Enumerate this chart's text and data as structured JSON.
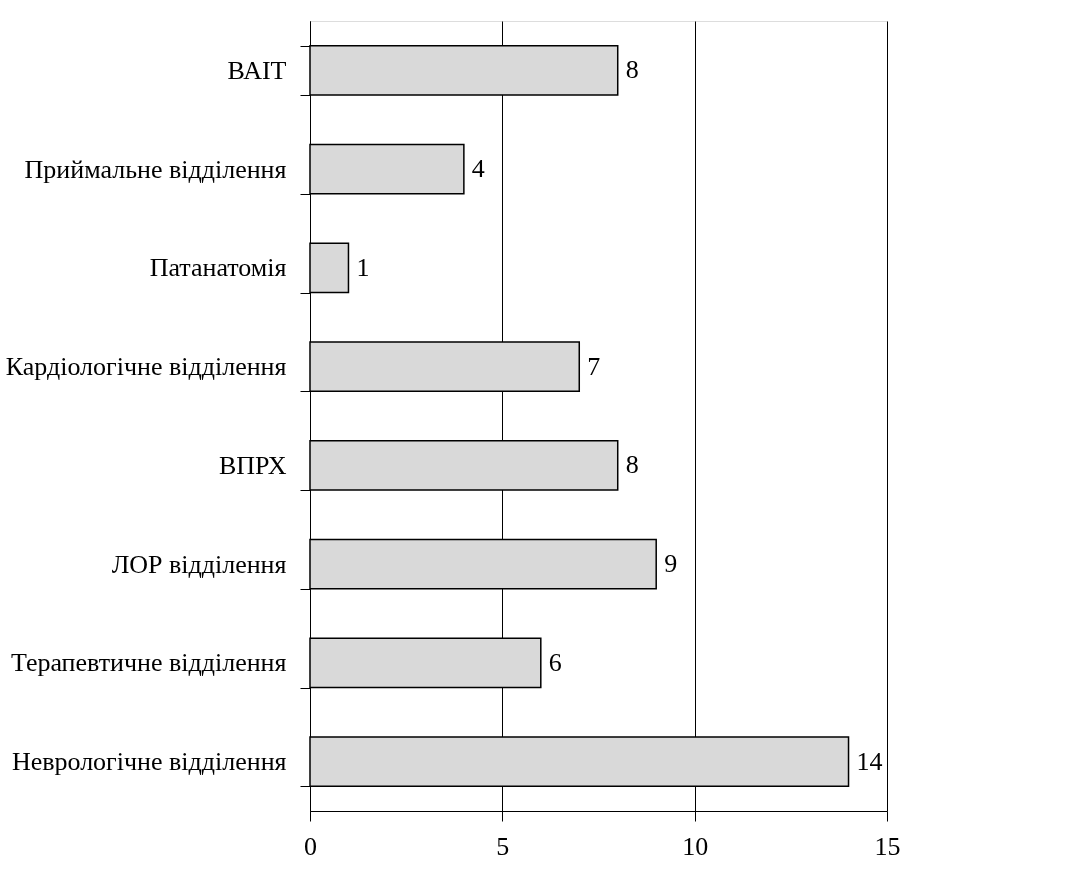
{
  "chart_data": {
    "type": "bar",
    "orientation": "horizontal",
    "categories": [
      "ВАІТ",
      "Приймальне відділення",
      "Патанатомія",
      "Кардіологічне відділення",
      "ВПРХ",
      "ЛОР відділення",
      "Терапевтичне відділення",
      "Неврологічне відділення"
    ],
    "values": [
      8,
      4,
      1,
      7,
      8,
      9,
      6,
      14
    ],
    "color": "#d9d9d9",
    "xlim": [
      0,
      15
    ],
    "xticks": [
      0,
      5,
      10,
      15
    ],
    "grid": "x",
    "data_labels": true
  }
}
